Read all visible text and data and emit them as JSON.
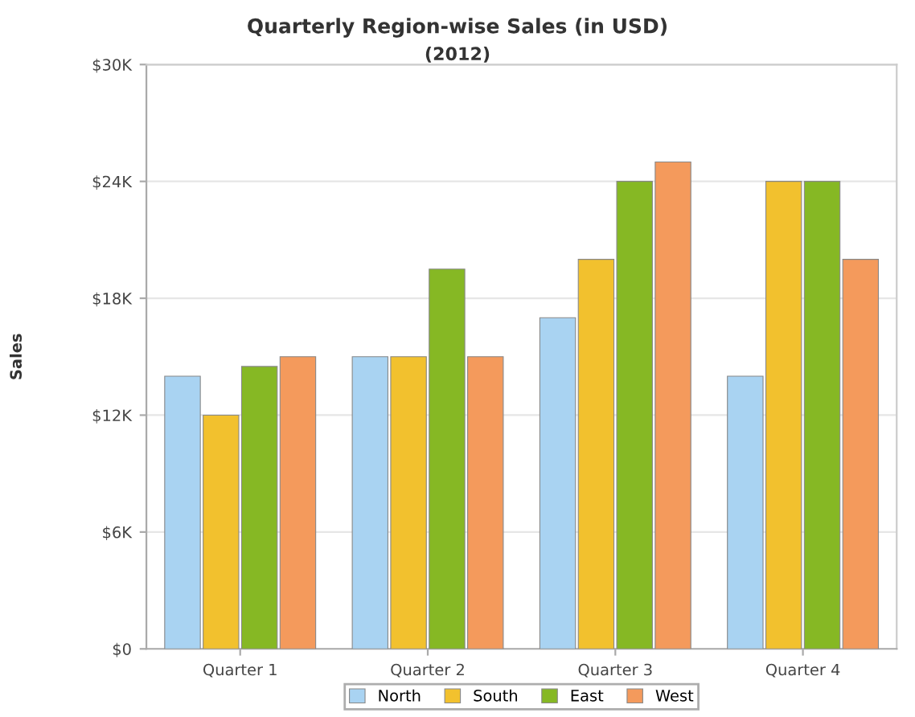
{
  "chart_data": {
    "type": "bar",
    "title": "Quarterly Region-wise Sales (in USD)",
    "subtitle": "(2012)",
    "ylabel": "Sales",
    "categories": [
      "Quarter 1",
      "Quarter 2",
      "Quarter 3",
      "Quarter 4"
    ],
    "series": [
      {
        "name": "North",
        "color": "#a9d3f2",
        "values": [
          14000,
          15000,
          17000,
          14000
        ]
      },
      {
        "name": "South",
        "color": "#f2c12e",
        "values": [
          12000,
          15000,
          20000,
          24000
        ]
      },
      {
        "name": "East",
        "color": "#86b824",
        "values": [
          14500,
          19500,
          24000,
          24000
        ]
      },
      {
        "name": "West",
        "color": "#f49a5c",
        "values": [
          15000,
          15000,
          25000,
          20000
        ]
      }
    ],
    "ylim": [
      0,
      30000
    ],
    "yticks": [
      {
        "value": 0,
        "label": "$0"
      },
      {
        "value": 6000,
        "label": "$6K"
      },
      {
        "value": 12000,
        "label": "$12K"
      },
      {
        "value": 18000,
        "label": "$18K"
      },
      {
        "value": 24000,
        "label": "$24K"
      },
      {
        "value": 30000,
        "label": "$30K"
      }
    ],
    "grid": "y",
    "legend": "bottom"
  }
}
